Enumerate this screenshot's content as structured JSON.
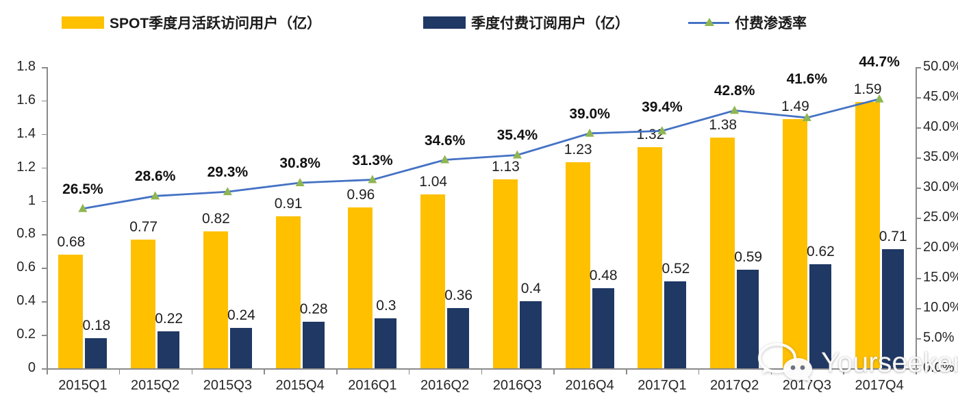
{
  "chart_data": {
    "type": "combo",
    "title": "",
    "categories": [
      "2015Q1",
      "2015Q2",
      "2015Q3",
      "2015Q4",
      "2016Q1",
      "2016Q2",
      "2016Q3",
      "2016Q4",
      "2017Q1",
      "2017Q2",
      "2017Q3",
      "2017Q4"
    ],
    "series": [
      {
        "name": "SPOT季度月活跃访问用户（亿）",
        "type": "bar",
        "axis": "left",
        "color": "#FFC000",
        "values": [
          0.68,
          0.77,
          0.82,
          0.91,
          0.96,
          1.04,
          1.13,
          1.23,
          1.32,
          1.38,
          1.49,
          1.59
        ],
        "labels": [
          "0.68",
          "0.77",
          "0.82",
          "0.91",
          "0.96",
          "1.04",
          "1.13",
          "1.23",
          "1.32",
          "1.38",
          "1.49",
          "1.59"
        ]
      },
      {
        "name": "季度付费订阅用户（亿）",
        "type": "bar",
        "axis": "left",
        "color": "#1F3864",
        "values": [
          0.18,
          0.22,
          0.24,
          0.28,
          0.3,
          0.36,
          0.4,
          0.48,
          0.52,
          0.59,
          0.62,
          0.71
        ],
        "labels": [
          "0.18",
          "0.22",
          "0.24",
          "0.28",
          "0.3",
          "0.36",
          "0.4",
          "0.48",
          "0.52",
          "0.59",
          "0.62",
          "0.71"
        ]
      },
      {
        "name": "付费渗透率",
        "type": "line",
        "axis": "right",
        "color": "#4472C4",
        "marker_color": "#8FB652",
        "values": [
          26.5,
          28.6,
          29.3,
          30.8,
          31.3,
          34.6,
          35.4,
          39.0,
          39.4,
          42.8,
          41.6,
          44.7
        ],
        "labels": [
          "26.5%",
          "28.6%",
          "29.3%",
          "30.8%",
          "31.3%",
          "34.6%",
          "35.4%",
          "39.0%",
          "39.4%",
          "42.8%",
          "41.6%",
          "44.7%"
        ]
      }
    ],
    "left_axis": {
      "min": 0,
      "max": 1.8,
      "tick_labels": [
        "0",
        "0.2",
        "0.4",
        "0.6",
        "0.8",
        "1",
        "1.2",
        "1.4",
        "1.6",
        "1.8"
      ]
    },
    "right_axis": {
      "min": 0,
      "max": 50,
      "tick_labels": [
        "0.0%",
        "5.0%",
        "10.0%",
        "15.0%",
        "20.0%",
        "25.0%",
        "30.0%",
        "35.0%",
        "40.0%",
        "45.0%",
        "50.0%"
      ]
    },
    "grid": false,
    "legend_position": "top"
  },
  "watermark": {
    "text": "Yourseeker",
    "icon": "wechat-icon"
  }
}
